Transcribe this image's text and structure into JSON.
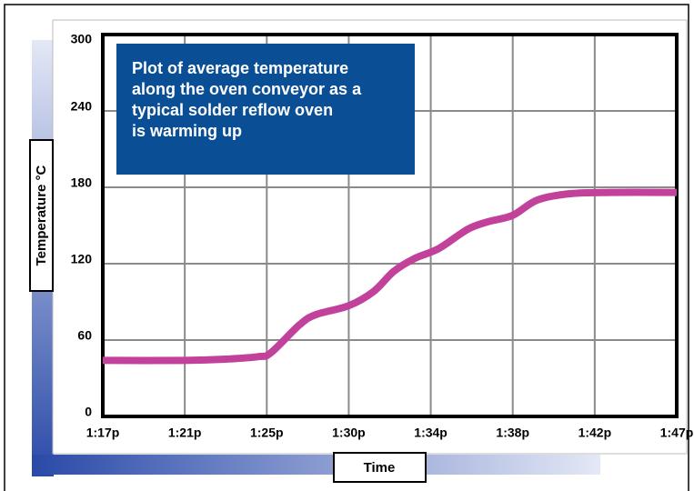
{
  "chart_data": {
    "type": "line",
    "annotation_lines": [
      "Plot of average temperature",
      "along the oven conveyor as a",
      "typical solder reflow oven",
      "is warming up"
    ],
    "x_label": "Time",
    "y_label": "Temperature °C",
    "xlim": [
      0,
      7
    ],
    "xticks": [
      {
        "value": 0,
        "label": "1:17p"
      },
      {
        "value": 1,
        "label": "1:21p"
      },
      {
        "value": 2,
        "label": "1:25p"
      },
      {
        "value": 3,
        "label": "1:30p"
      },
      {
        "value": 4,
        "label": "1:34p"
      },
      {
        "value": 5,
        "label": "1:38p"
      },
      {
        "value": 6,
        "label": "1:42p"
      },
      {
        "value": 7,
        "label": "1:47p"
      }
    ],
    "ylim": [
      0,
      300
    ],
    "yticks": [
      0,
      60,
      120,
      180,
      240,
      300
    ],
    "grid": true,
    "series": [
      {
        "color": "#c2419b",
        "x": [
          0,
          1,
          1.5,
          1.9,
          2.05,
          2.4,
          2.6,
          3,
          3.3,
          3.55,
          3.8,
          4.1,
          4.45,
          4.7,
          5,
          5.3,
          5.7,
          6.2,
          7
        ],
        "values": [
          44,
          44,
          45,
          47,
          50,
          72,
          80,
          87,
          98,
          114,
          124,
          132,
          147,
          153,
          158,
          170,
          175,
          176,
          176
        ]
      }
    ]
  }
}
